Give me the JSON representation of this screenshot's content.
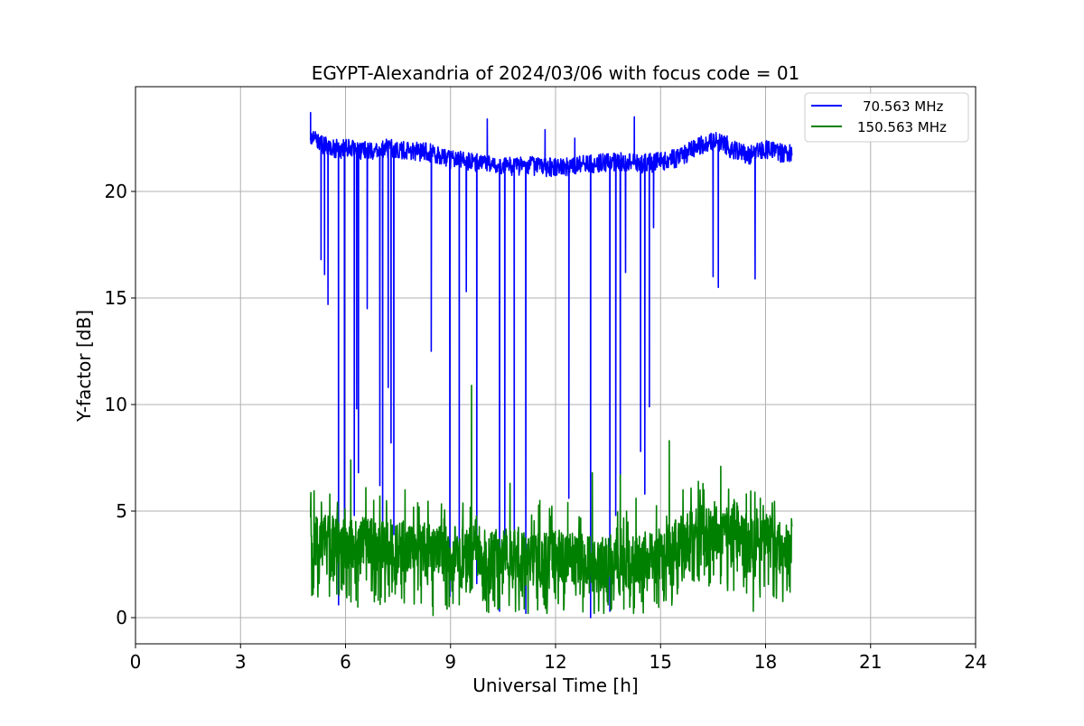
{
  "chart_data": {
    "type": "line",
    "title": "EGYPT-Alexandria of 2024/03/06 with focus code = 01",
    "xlabel": "Universal Time [h]",
    "ylabel": "Y-factor [dB]",
    "xlim": [
      0,
      24
    ],
    "ylim": [
      -1.2,
      25
    ],
    "xticks": [
      0,
      3,
      6,
      9,
      12,
      15,
      18,
      21,
      24
    ],
    "yticks": [
      0,
      5,
      10,
      15,
      20
    ],
    "xtick_labels": [
      "0",
      "3",
      "6",
      "9",
      "12",
      "15",
      "18",
      "21",
      "24"
    ],
    "ytick_labels": [
      "0",
      "5",
      "10",
      "15",
      "20"
    ],
    "grid": true,
    "legend_position": "top-right",
    "series": [
      {
        "name": "70.563 MHz",
        "color": "#0000ff",
        "baseline": {
          "x": [
            5.0,
            5.2,
            5.6,
            6.0,
            6.5,
            7.0,
            7.5,
            8.0,
            8.5,
            9.0,
            9.5,
            10.0,
            10.5,
            11.0,
            11.5,
            12.0,
            12.5,
            13.0,
            13.5,
            14.0,
            14.5,
            15.0,
            15.5,
            16.0,
            16.3,
            16.6,
            17.0,
            17.5,
            18.0,
            18.4,
            18.75
          ],
          "y": [
            22.5,
            22.3,
            22.0,
            22.0,
            21.9,
            22.0,
            22.0,
            21.9,
            21.8,
            21.5,
            21.4,
            21.3,
            21.2,
            21.2,
            21.2,
            21.1,
            21.2,
            21.3,
            21.4,
            21.4,
            21.3,
            21.4,
            21.6,
            22.0,
            22.3,
            22.4,
            22.0,
            21.7,
            22.0,
            21.8,
            21.8
          ]
        },
        "dips": {
          "x": [
            5.3,
            5.4,
            5.5,
            5.8,
            5.97,
            6.25,
            6.32,
            6.37,
            6.62,
            6.98,
            7.06,
            7.22,
            7.3,
            7.38,
            8.45,
            8.98,
            9.25,
            9.45,
            9.75,
            10.4,
            10.55,
            10.82,
            11.15,
            12.38,
            13.0,
            13.55,
            13.72,
            13.85,
            14.0,
            14.43,
            14.55,
            14.68,
            14.8,
            16.5,
            16.65,
            17.7
          ],
          "y": [
            16.8,
            16.1,
            14.7,
            0.6,
            4.2,
            4.8,
            9.8,
            6.8,
            14.5,
            6.2,
            3.9,
            10.8,
            8.2,
            3.9,
            12.5,
            1.0,
            2.1,
            15.3,
            1.6,
            0.3,
            2.9,
            4.0,
            0.2,
            5.6,
            0.0,
            0.3,
            4.8,
            6.3,
            16.2,
            7.8,
            5.8,
            9.9,
            18.3,
            16.0,
            15.5,
            15.9
          ]
        },
        "spikes": {
          "x": [
            5.0,
            10.05,
            11.7,
            12.55,
            14.25,
            16.9
          ],
          "y": [
            23.7,
            23.4,
            22.9,
            22.5,
            23.5,
            22.6
          ]
        }
      },
      {
        "name": "150.563 MHz",
        "color": "#008000",
        "baseline": {
          "x": [
            5.0,
            5.5,
            6.0,
            6.5,
            7.0,
            7.5,
            8.0,
            8.5,
            9.0,
            9.5,
            10.0,
            10.5,
            11.0,
            11.5,
            12.0,
            12.5,
            13.0,
            13.5,
            14.0,
            14.5,
            15.0,
            15.5,
            16.0,
            16.5,
            17.0,
            17.5,
            18.0,
            18.5,
            18.75
          ],
          "y": [
            3.6,
            3.7,
            3.5,
            3.5,
            3.4,
            3.4,
            3.3,
            3.2,
            3.1,
            3.1,
            3.0,
            3.0,
            2.9,
            2.9,
            2.9,
            2.8,
            2.7,
            2.7,
            2.7,
            2.8,
            3.0,
            3.5,
            4.0,
            4.3,
            4.0,
            3.7,
            3.7,
            3.5,
            3.6
          ]
        },
        "highs": {
          "x": [
            5.1,
            6.15,
            6.58,
            7.7,
            8.1,
            9.6,
            10.7,
            11.55,
            12.35,
            13.05,
            13.85,
            14.3,
            15.25,
            16.08,
            16.72,
            17.45,
            17.85
          ],
          "y": [
            5.4,
            7.4,
            6.1,
            6.0,
            5.2,
            10.9,
            6.3,
            5.5,
            5.4,
            6.8,
            6.7,
            5.6,
            8.3,
            6.4,
            7.1,
            5.8,
            5.6
          ]
        },
        "lows": {
          "x": [
            5.05,
            5.9,
            6.35,
            7.25,
            8.5,
            8.9,
            9.25,
            9.95,
            10.35,
            11.05,
            12.0,
            12.7,
            13.5,
            13.95,
            14.5,
            15.5,
            16.25,
            16.92,
            17.65,
            18.7
          ],
          "y": [
            1.4,
            1.3,
            0.5,
            1.0,
            0.1,
            0.4,
            0.6,
            0.9,
            0.8,
            1.0,
            0.9,
            1.1,
            0.6,
            0.4,
            1.0,
            1.4,
            2.0,
            1.9,
            0.3,
            1.2
          ]
        }
      }
    ]
  }
}
